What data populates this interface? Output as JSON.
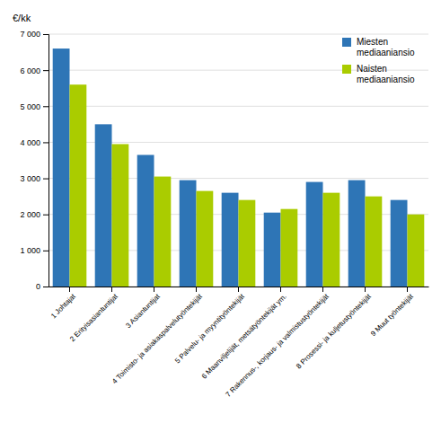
{
  "chart_data": {
    "type": "bar",
    "ylabel": "€/kk",
    "categories": [
      "1 Johtajat",
      "2 Erityisasiantuntijat",
      "3 Asiantuntijat",
      "4 Toimisto- ja asiakaspalvelutyöntekijät",
      "5 Palvelu- ja myyntityöntekijät",
      "6 Maanviljelijät, metsätyöntekijät ym.",
      "7 Rakennus-, korjaus- ja valmistustyöntekijät",
      "8 Prosessi- ja kuljetustyöntekijät",
      "9 Muut työntekijät"
    ],
    "series": [
      {
        "name": "Miesten\nmediaaniansio",
        "color": "#2E75B6",
        "values": [
          6600,
          4500,
          3650,
          2950,
          2600,
          2050,
          2900,
          2950,
          2400
        ]
      },
      {
        "name": "Naisten\nmediaaniansio",
        "color": "#AACC00",
        "values": [
          5600,
          3950,
          3050,
          2650,
          2400,
          2150,
          2600,
          2500,
          2000
        ]
      }
    ],
    "ylim": [
      0,
      7000
    ],
    "yticks": [
      0,
      {
        "value": 1000,
        "label": "1 000"
      },
      {
        "value": 2000,
        "label": "2 000"
      },
      {
        "value": 3000,
        "label": "3 000"
      },
      {
        "value": 4000,
        "label": "4 000"
      },
      {
        "value": 5000,
        "label": "5 000"
      },
      {
        "value": 6000,
        "label": "6 000"
      },
      {
        "value": 7000,
        "label": "7 000"
      }
    ],
    "grid": true,
    "legend": "upper right"
  }
}
